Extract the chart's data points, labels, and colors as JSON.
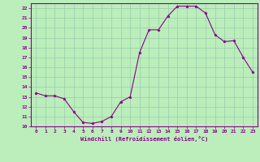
{
  "xlabel": "Windchill (Refroidissement éolien,°C)",
  "x_values": [
    0,
    1,
    2,
    3,
    4,
    5,
    6,
    7,
    8,
    9,
    10,
    11,
    12,
    13,
    14,
    15,
    16,
    17,
    18,
    19,
    20,
    21,
    22,
    23
  ],
  "y_values": [
    13.4,
    13.1,
    13.1,
    12.8,
    11.5,
    10.4,
    10.3,
    10.5,
    11.0,
    12.5,
    13.0,
    17.5,
    19.8,
    19.8,
    21.2,
    22.2,
    22.2,
    22.2,
    21.5,
    19.3,
    18.6,
    18.7,
    17.0,
    15.5
  ],
  "ylim": [
    10,
    22.5
  ],
  "xlim": [
    -0.5,
    23.5
  ],
  "yticks": [
    10,
    11,
    12,
    13,
    14,
    15,
    16,
    17,
    18,
    19,
    20,
    21,
    22
  ],
  "xticks": [
    0,
    1,
    2,
    3,
    4,
    5,
    6,
    7,
    8,
    9,
    10,
    11,
    12,
    13,
    14,
    15,
    16,
    17,
    18,
    19,
    20,
    21,
    22,
    23
  ],
  "line_color": "#880088",
  "marker": "*",
  "bg_color": "#bbeebb",
  "grid_color": "#99ccaa",
  "tick_color": "#880088",
  "label_color": "#880088",
  "spine_color": "#880088"
}
